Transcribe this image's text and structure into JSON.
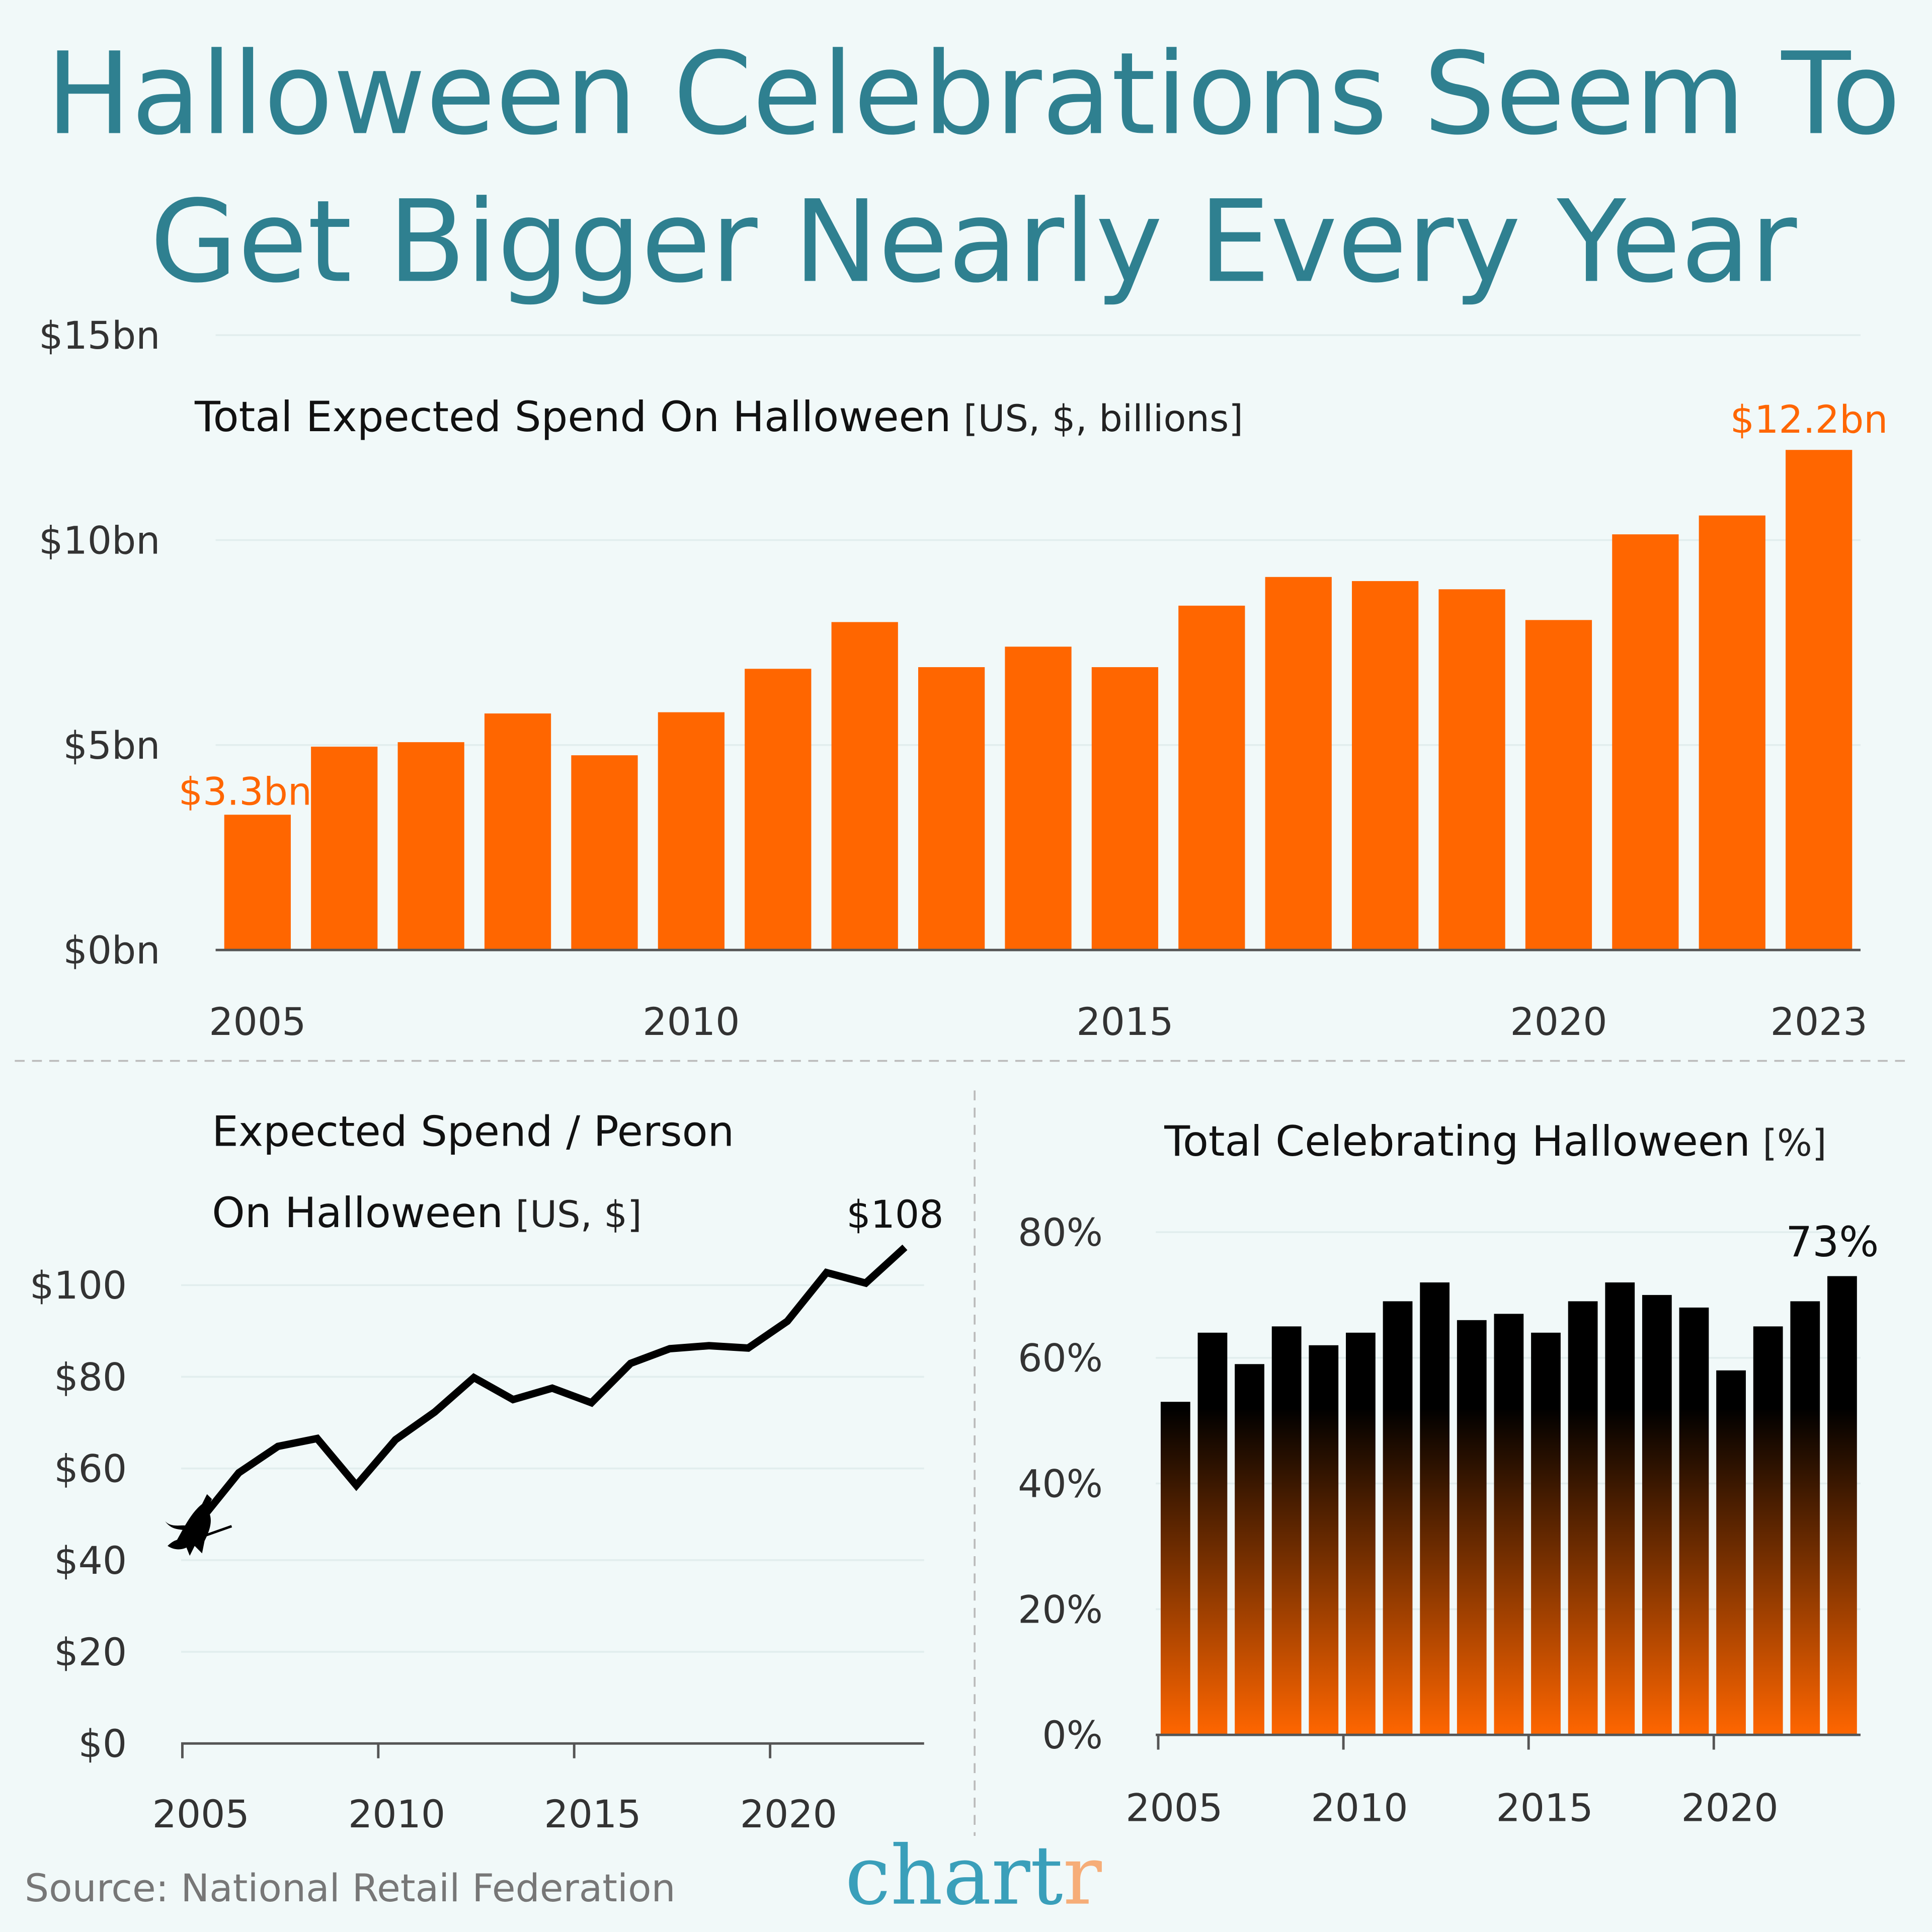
{
  "title_line1": "Halloween Celebrations Seem To",
  "title_line2": "Get Bigger Nearly Every Year",
  "source": "Source: National Retail Federation",
  "logo": {
    "text_main": "chart",
    "text_accent": "r",
    "main_color": "#3a9fba",
    "accent_color": "#f6ad78"
  },
  "colors": {
    "background": "#f1f9f9",
    "orange": "#ff6600",
    "title": "#2f8090"
  },
  "chart_data": [
    {
      "type": "bar",
      "title": "Total Expected Spend On Halloween",
      "title_units": "[US, $, billions]",
      "categories": [
        2005,
        2006,
        2007,
        2008,
        2009,
        2010,
        2011,
        2012,
        2013,
        2014,
        2015,
        2016,
        2017,
        2018,
        2019,
        2020,
        2021,
        2022,
        2023
      ],
      "values": [
        3.3,
        4.96,
        5.07,
        5.77,
        4.75,
        5.8,
        6.86,
        8.0,
        6.9,
        7.4,
        6.9,
        8.4,
        9.1,
        9.0,
        8.8,
        8.05,
        10.14,
        10.6,
        12.2
      ],
      "ylim": [
        0,
        15
      ],
      "yticks": [
        {
          "v": 0,
          "label": "$0bn"
        },
        {
          "v": 5,
          "label": "$5bn"
        },
        {
          "v": 10,
          "label": "$10bn"
        },
        {
          "v": 15,
          "label": "$15bn"
        }
      ],
      "xticks": [
        {
          "v": 2005,
          "label": "2005"
        },
        {
          "v": 2010,
          "label": "2010"
        },
        {
          "v": 2015,
          "label": "2015"
        },
        {
          "v": 2020,
          "label": "2020"
        },
        {
          "v": 2023,
          "label": "2023"
        }
      ],
      "annotations": [
        {
          "year": 2005,
          "label": "$3.3bn"
        },
        {
          "year": 2023,
          "label": "$12.2bn"
        }
      ],
      "color": "#ff6600",
      "grid": true
    },
    {
      "type": "line",
      "title_line1": "Expected Spend / Person",
      "title_line2": "On Halloween",
      "title_units": "[US, $]",
      "x": [
        2005,
        2006,
        2007,
        2008,
        2009,
        2010,
        2011,
        2012,
        2013,
        2014,
        2015,
        2016,
        2017,
        2018,
        2019,
        2020,
        2021,
        2022,
        2023
      ],
      "values": [
        48.48,
        59.06,
        64.82,
        66.54,
        56.31,
        66.28,
        72.31,
        79.82,
        75.03,
        77.52,
        74.34,
        82.93,
        86.13,
        86.79,
        86.27,
        92.12,
        102.74,
        100.45,
        108.24
      ],
      "ylim": [
        0,
        110
      ],
      "yticks": [
        {
          "v": 0,
          "label": "$0"
        },
        {
          "v": 20,
          "label": "$20"
        },
        {
          "v": 40,
          "label": "$40"
        },
        {
          "v": 60,
          "label": "$60"
        },
        {
          "v": 80,
          "label": "$80"
        },
        {
          "v": 100,
          "label": "$100"
        }
      ],
      "xticks": [
        {
          "v": 2005,
          "label": "2005"
        },
        {
          "v": 2010,
          "label": "2010"
        },
        {
          "v": 2015,
          "label": "2015"
        },
        {
          "v": 2020,
          "label": "2020"
        }
      ],
      "annotations": [
        {
          "year": 2023,
          "label": "$108"
        }
      ],
      "marker_icon": "witch-on-broom-icon",
      "color": "#000000",
      "grid": true
    },
    {
      "type": "bar",
      "title": "Total Celebrating Halloween",
      "title_units": "[%]",
      "categories": [
        2005,
        2006,
        2007,
        2008,
        2009,
        2010,
        2011,
        2012,
        2013,
        2014,
        2015,
        2016,
        2017,
        2018,
        2019,
        2020,
        2021,
        2022,
        2023
      ],
      "values": [
        53,
        64,
        59,
        65,
        62,
        64,
        69,
        72,
        66,
        67,
        64,
        69,
        72,
        70,
        68,
        58,
        65,
        69,
        73
      ],
      "ylim": [
        0,
        80
      ],
      "yticks": [
        {
          "v": 0,
          "label": "0%"
        },
        {
          "v": 20,
          "label": "20%"
        },
        {
          "v": 40,
          "label": "40%"
        },
        {
          "v": 60,
          "label": "60%"
        },
        {
          "v": 80,
          "label": "80%"
        }
      ],
      "xticks": [
        {
          "v": 2005,
          "label": "2005"
        },
        {
          "v": 2010,
          "label": "2010"
        },
        {
          "v": 2015,
          "label": "2015"
        },
        {
          "v": 2020,
          "label": "2020"
        }
      ],
      "annotations": [
        {
          "year": 2023,
          "label": "73%"
        }
      ],
      "color_gradient": [
        "#000000",
        "#ff6600"
      ],
      "grid": true
    }
  ]
}
